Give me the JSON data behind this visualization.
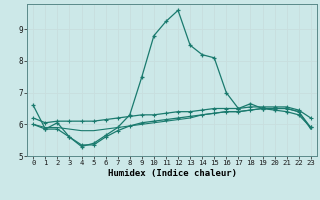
{
  "xlabel": "Humidex (Indice chaleur)",
  "background_color": "#cce8e8",
  "grid_color": "#b0d0d0",
  "line_color": "#1a7a6e",
  "x_values": [
    0,
    1,
    2,
    3,
    4,
    5,
    6,
    7,
    8,
    9,
    10,
    11,
    12,
    13,
    14,
    15,
    16,
    17,
    18,
    19,
    20,
    21,
    22,
    23
  ],
  "line1": [
    6.6,
    5.85,
    6.05,
    5.6,
    5.3,
    5.4,
    5.65,
    5.9,
    6.3,
    7.5,
    8.8,
    9.25,
    9.6,
    8.5,
    8.2,
    8.1,
    7.0,
    6.5,
    6.65,
    6.5,
    6.45,
    6.4,
    6.3,
    5.9
  ],
  "line2": [
    6.2,
    6.05,
    6.1,
    6.1,
    6.1,
    6.1,
    6.15,
    6.2,
    6.25,
    6.3,
    6.3,
    6.35,
    6.4,
    6.4,
    6.45,
    6.5,
    6.5,
    6.5,
    6.55,
    6.55,
    6.55,
    6.55,
    6.45,
    6.2
  ],
  "line3": [
    6.0,
    5.85,
    5.85,
    5.6,
    5.35,
    5.35,
    5.6,
    5.8,
    5.95,
    6.05,
    6.1,
    6.15,
    6.2,
    6.25,
    6.3,
    6.35,
    6.4,
    6.4,
    6.45,
    6.5,
    6.5,
    6.5,
    6.4,
    5.9
  ],
  "line4": [
    6.0,
    5.9,
    5.9,
    5.85,
    5.8,
    5.8,
    5.85,
    5.9,
    5.95,
    6.0,
    6.05,
    6.1,
    6.15,
    6.2,
    6.3,
    6.35,
    6.4,
    6.4,
    6.45,
    6.5,
    6.5,
    6.5,
    6.4,
    5.85
  ],
  "ylim": [
    5.0,
    9.8
  ],
  "yticks": [
    5,
    6,
    7,
    8,
    9
  ],
  "xticks": [
    0,
    1,
    2,
    3,
    4,
    5,
    6,
    7,
    8,
    9,
    10,
    11,
    12,
    13,
    14,
    15,
    16,
    17,
    18,
    19,
    20,
    21,
    22,
    23
  ]
}
